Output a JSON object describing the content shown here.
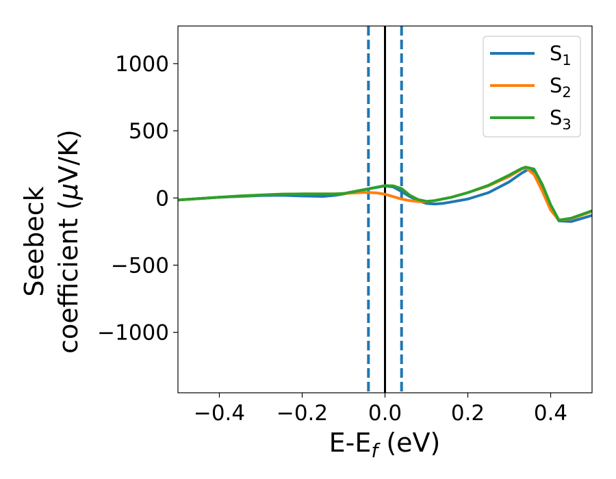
{
  "chart_data": {
    "type": "line",
    "xlabel": {
      "main": "E-E",
      "sub": "f",
      "suffix": " (eV)"
    },
    "ylabel": {
      "line1": "Seebeck",
      "line2_prefix": "coefficient  (",
      "mu": "μ",
      "line2_suffix": "V/K)"
    },
    "xlim": [
      -0.5,
      0.5
    ],
    "ylim": [
      -1450,
      1280
    ],
    "x_ticks": [
      -0.4,
      -0.2,
      0.0,
      0.2,
      0.4
    ],
    "x_tick_labels": [
      "−0.4",
      "−0.2",
      "0.0",
      "0.2",
      "0.4"
    ],
    "y_ticks": [
      -1000,
      -500,
      0,
      500,
      1000
    ],
    "y_tick_labels": [
      "−1000",
      "−500",
      "0",
      "500",
      "1000"
    ],
    "grid": false,
    "legend_position": "top-right",
    "series": [
      {
        "name": "S",
        "sub": "1",
        "color": "#1f77b4",
        "x": [
          -0.5,
          -0.45,
          -0.4,
          -0.35,
          -0.3,
          -0.25,
          -0.2,
          -0.15,
          -0.12,
          -0.1,
          -0.05,
          0.0,
          0.02,
          0.04,
          0.06,
          0.08,
          0.1,
          0.12,
          0.14,
          0.16,
          0.2,
          0.25,
          0.3,
          0.33,
          0.35,
          0.36,
          0.38,
          0.4,
          0.42,
          0.45,
          0.5
        ],
        "y": [
          -15,
          -5,
          5,
          12,
          18,
          20,
          15,
          12,
          20,
          30,
          62,
          90,
          82,
          48,
          10,
          -20,
          -40,
          -45,
          -40,
          -30,
          -8,
          40,
          120,
          185,
          220,
          200,
          70,
          -80,
          -170,
          -175,
          -130
        ]
      },
      {
        "name": "S",
        "sub": "2",
        "color": "#ff7f0e",
        "x": [
          -0.5,
          -0.45,
          -0.4,
          -0.35,
          -0.3,
          -0.25,
          -0.2,
          -0.15,
          -0.12,
          -0.1,
          -0.05,
          -0.02,
          0.0,
          0.02,
          0.04,
          0.06,
          0.08,
          0.1,
          0.12,
          0.16,
          0.2,
          0.25,
          0.3,
          0.33,
          0.34,
          0.36,
          0.38,
          0.4,
          0.42,
          0.45,
          0.5
        ],
        "y": [
          -15,
          -5,
          5,
          15,
          22,
          28,
          30,
          30,
          30,
          33,
          42,
          38,
          28,
          10,
          -8,
          -20,
          -27,
          -27,
          -20,
          5,
          40,
          90,
          160,
          215,
          225,
          175,
          50,
          -90,
          -165,
          -155,
          -100
        ]
      },
      {
        "name": "S",
        "sub": "3",
        "color": "#2ca02c",
        "x": [
          -0.5,
          -0.45,
          -0.4,
          -0.35,
          -0.3,
          -0.25,
          -0.2,
          -0.15,
          -0.12,
          -0.1,
          -0.05,
          0.0,
          0.02,
          0.04,
          0.06,
          0.08,
          0.1,
          0.12,
          0.16,
          0.2,
          0.25,
          0.3,
          0.33,
          0.34,
          0.36,
          0.38,
          0.4,
          0.42,
          0.45,
          0.5
        ],
        "y": [
          -15,
          -5,
          5,
          15,
          22,
          28,
          30,
          30,
          30,
          33,
          62,
          92,
          90,
          70,
          20,
          -12,
          -25,
          -20,
          5,
          40,
          95,
          170,
          220,
          230,
          215,
          100,
          -50,
          -165,
          -150,
          -95
        ]
      }
    ],
    "reference_lines": [
      {
        "x": 0.0,
        "color": "#000000",
        "style": "solid"
      },
      {
        "x": -0.04,
        "color": "#1f77b4",
        "style": "dashed"
      },
      {
        "x": 0.04,
        "color": "#1f77b4",
        "style": "dashed"
      }
    ]
  }
}
